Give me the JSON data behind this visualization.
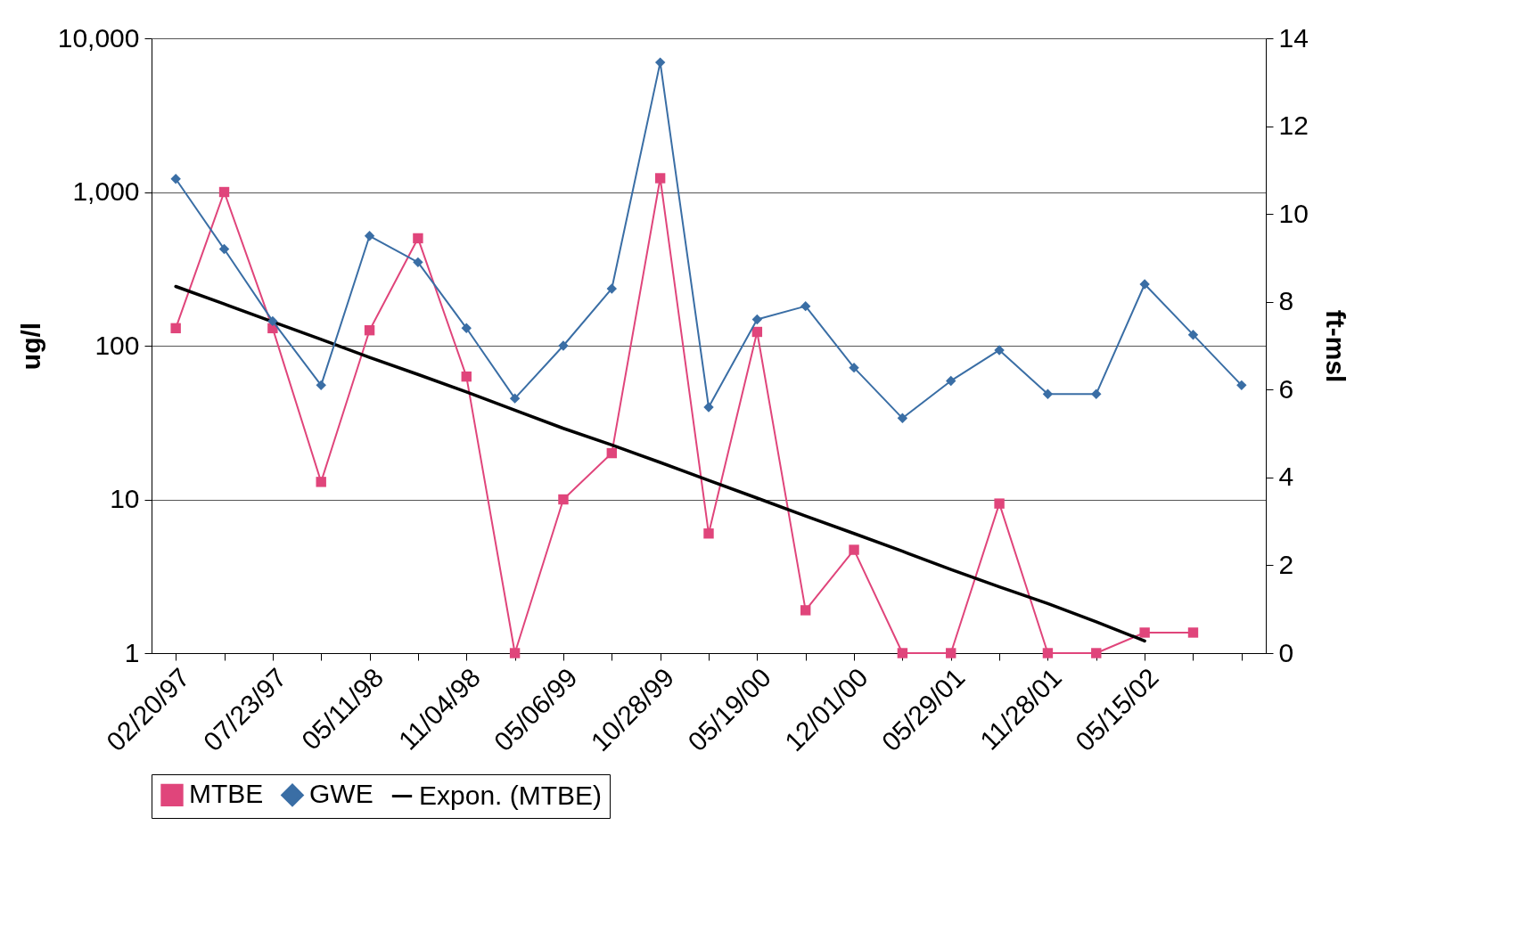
{
  "chart_data": {
    "type": "line",
    "ylabel": "ug/l",
    "y2label": "ft-msl",
    "log": "y",
    "ylim": [
      1,
      10000
    ],
    "yticks": [
      {
        "value": 1,
        "label": "1"
      },
      {
        "value": 10,
        "label": "10"
      },
      {
        "value": 100,
        "label": "100"
      },
      {
        "value": 1000,
        "label": "1,000"
      },
      {
        "value": 10000,
        "label": "10,000"
      }
    ],
    "y2lim": [
      0,
      14
    ],
    "y2ticks": [
      0,
      2,
      4,
      6,
      8,
      10,
      12,
      14
    ],
    "grid": "y",
    "legend": "bottom",
    "categories": [
      "02/20/97",
      null,
      "07/23/97",
      null,
      "05/11/98",
      null,
      "11/04/98",
      null,
      "05/06/99",
      null,
      "10/28/99",
      null,
      "05/19/00",
      null,
      "12/01/00",
      null,
      "05/29/01",
      null,
      "11/28/01",
      null,
      "05/15/02",
      null,
      null
    ],
    "series": [
      {
        "name": "MTBE",
        "color": "#e0457b",
        "marker": "square",
        "values": [
          130,
          1000,
          130,
          13,
          126,
          500,
          63,
          1,
          10,
          20,
          1230,
          6,
          123,
          1.9,
          4.7,
          1,
          1,
          9.4,
          1,
          1,
          1.36,
          1.36,
          null
        ]
      },
      {
        "name": "GWE",
        "color": "#3a6ea5",
        "marker": "diamond",
        "axis": "y2",
        "values": [
          10.8,
          9.2,
          7.56,
          6.1,
          9.5,
          8.9,
          7.4,
          5.8,
          7.0,
          8.3,
          13.45,
          5.6,
          7.6,
          7.9,
          6.5,
          5.35,
          6.2,
          6.9,
          5.9,
          5.9,
          8.4,
          7.25,
          6.1
        ]
      },
      {
        "name": "Expon. (MTBE)",
        "type": "line",
        "color": "#000000",
        "marker": "none",
        "values": [
          243,
          187,
          143,
          110,
          84,
          65,
          50,
          38,
          29,
          22.6,
          17.4,
          13.3,
          10.2,
          7.8,
          6.0,
          4.6,
          3.5,
          2.7,
          2.1,
          1.6,
          1.2,
          null,
          null
        ]
      }
    ]
  }
}
